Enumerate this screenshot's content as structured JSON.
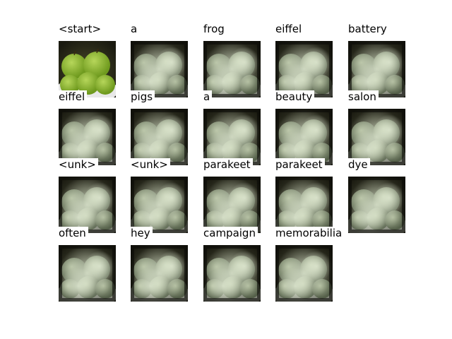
{
  "tokens": [
    {
      "word": "<start>",
      "kind": "photo"
    },
    {
      "word": "a",
      "kind": "attention"
    },
    {
      "word": "frog",
      "kind": "attention"
    },
    {
      "word": "eiffel",
      "kind": "attention"
    },
    {
      "word": "battery",
      "kind": "attention"
    },
    {
      "word": "eiffel",
      "kind": "attention"
    },
    {
      "word": "pigs",
      "kind": "attention"
    },
    {
      "word": "a",
      "kind": "attention"
    },
    {
      "word": "beauty",
      "kind": "attention"
    },
    {
      "word": "salon",
      "kind": "attention"
    },
    {
      "word": "<unk>",
      "kind": "attention"
    },
    {
      "word": "<unk>",
      "kind": "attention"
    },
    {
      "word": "parakeet",
      "kind": "attention"
    },
    {
      "word": "parakeet",
      "kind": "attention"
    },
    {
      "word": "dye",
      "kind": "attention"
    },
    {
      "word": "often",
      "kind": "attention"
    },
    {
      "word": "hey",
      "kind": "attention"
    },
    {
      "word": "campaign",
      "kind": "attention"
    },
    {
      "word": "memorabilia",
      "kind": "attention"
    }
  ],
  "colors": {
    "apple": "#6f9a1e",
    "apple_highlight": "#b6d65a",
    "bowl": "#e8e8e8",
    "background_dark": "#1a1a10",
    "attention_glow": "#e6efd8"
  }
}
